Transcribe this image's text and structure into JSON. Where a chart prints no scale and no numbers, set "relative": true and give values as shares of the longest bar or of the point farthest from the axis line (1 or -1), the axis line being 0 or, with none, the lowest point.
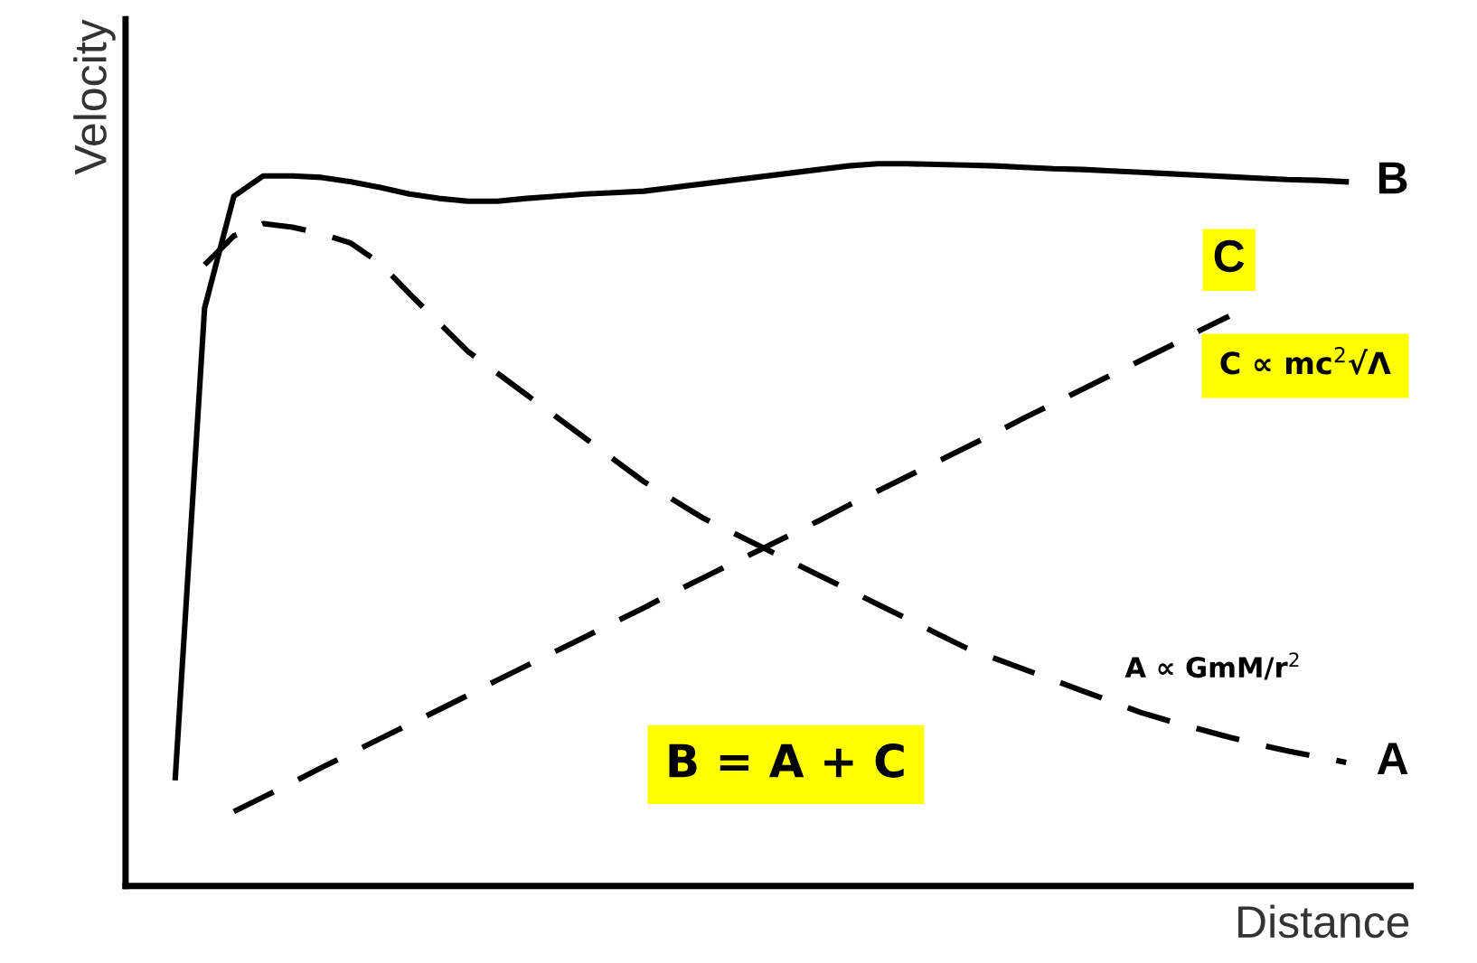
{
  "chart_data": {
    "type": "line",
    "relative": true,
    "xlabel": "Distance",
    "ylabel": "Velocity",
    "categories": [
      null,
      null,
      null,
      null,
      null,
      null,
      null,
      null,
      null,
      null,
      null,
      null,
      null,
      null,
      null,
      null,
      null,
      null,
      null,
      null,
      null,
      null,
      null,
      null,
      null,
      null,
      null,
      null,
      null,
      null,
      null,
      null,
      null,
      null,
      null,
      null,
      null,
      null,
      null,
      null,
      null
    ],
    "series": [
      {
        "name": "B",
        "color": "#000000",
        "line_style": "solid",
        "values": [
          0.15,
          0.8,
          0.955,
          0.983,
          0.983,
          0.981,
          0.975,
          0.967,
          0.958,
          0.952,
          0.948,
          0.948,
          0.952,
          0.955,
          0.958,
          0.96,
          0.962,
          0.967,
          0.972,
          0.977,
          0.982,
          0.987,
          0.992,
          0.997,
          1.0,
          1.0,
          0.999,
          0.998,
          0.997,
          0.995,
          0.993,
          0.992,
          0.99,
          0.988,
          0.986,
          0.984,
          0.982,
          0.98,
          0.978,
          0.977,
          0.975
        ]
      },
      {
        "name": "C",
        "color": "#000000",
        "line_style": "dashed",
        "values": [
          null,
          null,
          0.103,
          0.123,
          0.143,
          0.164,
          0.184,
          0.204,
          0.224,
          0.244,
          0.264,
          0.285,
          0.305,
          0.325,
          0.345,
          0.365,
          0.385,
          0.406,
          0.426,
          0.446,
          0.466,
          0.486,
          0.506,
          0.527,
          0.547,
          0.567,
          0.587,
          0.607,
          0.627,
          0.648,
          0.668,
          0.688,
          0.708,
          0.728,
          0.748,
          0.769,
          0.789,
          null,
          null,
          null,
          null
        ]
      },
      {
        "name": "A",
        "color": "#000000",
        "line_style": "dashed",
        "values": [
          null,
          0.86,
          0.9,
          0.917,
          0.912,
          0.903,
          0.89,
          0.862,
          0.82,
          0.78,
          0.74,
          0.71,
          0.68,
          0.65,
          0.62,
          0.59,
          0.56,
          0.535,
          0.51,
          0.49,
          0.47,
          0.45,
          0.43,
          0.41,
          0.39,
          0.37,
          0.35,
          0.33,
          0.315,
          0.3,
          0.285,
          0.27,
          0.255,
          0.24,
          0.228,
          0.217,
          0.206,
          0.196,
          0.187,
          0.179,
          0.171
        ]
      }
    ],
    "annotations": [
      "C ∝ mc$^{2}$√Λ",
      "A ∝ GmM/r$^{2}$",
      "B = A + C"
    ]
  }
}
